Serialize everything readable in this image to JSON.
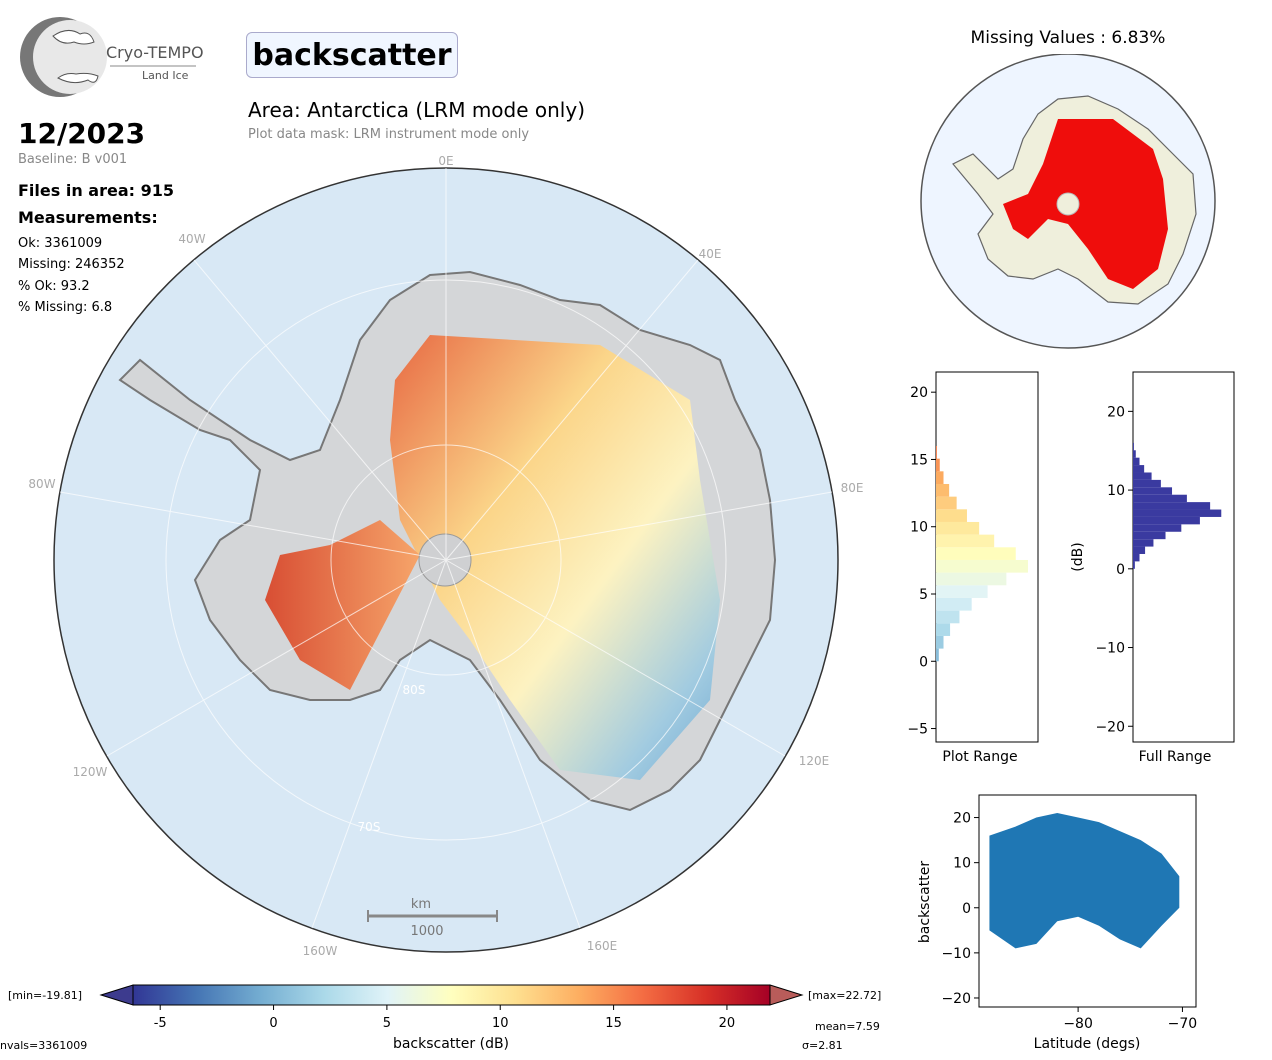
{
  "logo": {
    "name": "Cryo-TEMPO",
    "subtitle": "Land Ice"
  },
  "header": {
    "parameter": "backscatter",
    "date": "12/2023",
    "baseline": "Baseline: B v001",
    "area": "Area: Antarctica (LRM mode only)",
    "mask": "Plot data mask: LRM instrument mode only"
  },
  "stats": {
    "files": "Files in area: 915",
    "measurements_label": "Measurements:",
    "ok": "Ok: 3361009",
    "missing": "Missing: 246352",
    "pct_ok": "% Ok: 93.2",
    "pct_missing": "% Missing: 6.8"
  },
  "map": {
    "lon_labels": [
      "0E",
      "40E",
      "80E",
      "120E",
      "160E",
      "160W",
      "120W",
      "80W",
      "40W"
    ],
    "lat_labels": [
      "80S",
      "70S"
    ],
    "scalebar_unit": "km",
    "scalebar_value": "1000"
  },
  "missing_map": {
    "title": "Missing Values : 6.83%"
  },
  "colorbar": {
    "min_label": "[min=-19.81]",
    "max_label": "[max=22.72]",
    "ticks": [
      "-5",
      "0",
      "5",
      "10",
      "15",
      "20"
    ],
    "label": "backscatter (dB)",
    "nvals": "nvals=3361009",
    "mean": "mean=7.59",
    "sigma": "σ=2.81",
    "colors": [
      "#313695",
      "#4575b4",
      "#74add1",
      "#abd9e9",
      "#e0f3f8",
      "#ffffbf",
      "#fee090",
      "#fdae61",
      "#f46d43",
      "#d73027",
      "#a50026"
    ]
  },
  "chart_data": [
    {
      "type": "bar",
      "orientation": "horizontal",
      "xlabel": "Plot Range",
      "ylabel": "",
      "ylim": [
        -6,
        21.5
      ],
      "yticks": [
        "-5",
        "0",
        "5",
        "10",
        "15",
        "20"
      ],
      "bins": [
        0,
        1,
        2,
        3,
        4,
        5,
        6,
        7,
        8,
        9,
        10,
        11,
        12,
        13,
        14,
        15,
        16
      ],
      "values": [
        0.03,
        0.08,
        0.15,
        0.25,
        0.38,
        0.55,
        0.75,
        0.98,
        0.85,
        0.62,
        0.46,
        0.33,
        0.22,
        0.14,
        0.08,
        0.04,
        0.01
      ]
    },
    {
      "type": "bar",
      "orientation": "horizontal",
      "xlabel": "Full Range",
      "ylabel": "(dB)",
      "ylim": [
        -22,
        25
      ],
      "yticks": [
        "-20",
        "-10",
        "0",
        "10",
        "20"
      ],
      "bins": [
        0,
        1,
        2,
        3,
        4,
        5,
        6,
        7,
        8,
        9,
        10,
        11,
        12,
        13,
        14,
        15,
        16
      ],
      "values": [
        0.02,
        0.07,
        0.13,
        0.22,
        0.35,
        0.52,
        0.72,
        0.95,
        0.83,
        0.58,
        0.42,
        0.3,
        0.2,
        0.12,
        0.07,
        0.03,
        0.01
      ],
      "color": "#3a3aa0"
    },
    {
      "type": "scatter",
      "xlabel": "Latitude (degs)",
      "ylabel": "backscatter",
      "xlim": [
        -89.5,
        -68.7
      ],
      "ylim": [
        -22,
        25
      ],
      "xticks": [
        "-80",
        "-70"
      ],
      "yticks": [
        "-20",
        "-10",
        "0",
        "10",
        "20"
      ],
      "band_upper": [
        [
          -88.5,
          16
        ],
        [
          -86,
          18
        ],
        [
          -84,
          20
        ],
        [
          -82,
          21
        ],
        [
          -80,
          20
        ],
        [
          -78,
          19
        ],
        [
          -76,
          17
        ],
        [
          -74,
          15
        ],
        [
          -72,
          12
        ],
        [
          -70.3,
          7
        ]
      ],
      "band_lower": [
        [
          -88.5,
          -5
        ],
        [
          -86,
          -9
        ],
        [
          -84,
          -8
        ],
        [
          -82,
          -3
        ],
        [
          -80,
          -2
        ],
        [
          -78,
          -4
        ],
        [
          -76,
          -7
        ],
        [
          -74,
          -9
        ],
        [
          -72,
          -4
        ],
        [
          -70.3,
          0
        ]
      ],
      "color": "#1f77b4"
    }
  ]
}
